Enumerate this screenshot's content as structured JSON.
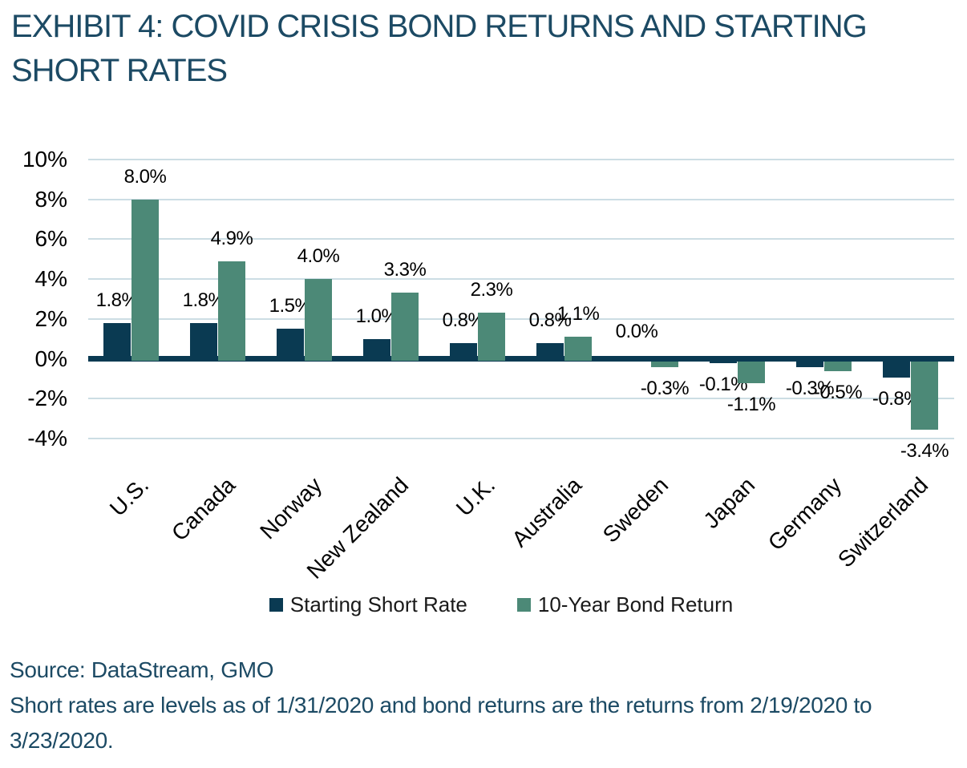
{
  "header": {
    "title": "EXHIBIT 4: COVID CRISIS BOND RETURNS AND STARTING SHORT RATES"
  },
  "colors": {
    "short_rate": "#0a3a52",
    "bond_return": "#4c8977",
    "gridline": "#ccdde4",
    "zero_axis": "#0a3a52",
    "heading_text": "#1c4a64",
    "label_text": "#000000"
  },
  "chart_data": {
    "type": "bar",
    "title": "EXHIBIT 4: COVID CRISIS BOND RETURNS AND STARTING SHORT RATES",
    "categories": [
      "U.S.",
      "Canada",
      "Norway",
      "New Zealand",
      "U.K.",
      "Australia",
      "Sweden",
      "Japan",
      "Germany",
      "Switzerland"
    ],
    "series": [
      {
        "name": "Starting Short Rate",
        "color_key": "short_rate",
        "values": [
          1.8,
          1.8,
          1.5,
          1.0,
          0.8,
          0.8,
          0.0,
          -0.1,
          -0.3,
          -0.8
        ],
        "labels": [
          "1.8%",
          "1.8%",
          "1.5%",
          "1.0%",
          "0.8%",
          "0.8%",
          "0.0%",
          "-0.1%",
          "-0.3%",
          "-0.8%"
        ]
      },
      {
        "name": "10-Year Bond Return",
        "color_key": "bond_return",
        "values": [
          8.0,
          4.9,
          4.0,
          3.3,
          2.3,
          1.1,
          -0.3,
          -1.1,
          -0.5,
          -3.4
        ],
        "labels": [
          "8.0%",
          "4.9%",
          "4.0%",
          "3.3%",
          "2.3%",
          "1.1%",
          "-0.3%",
          "-1.1%",
          "-0.5%",
          "-3.4%"
        ]
      }
    ],
    "y_ticks": [
      {
        "label": "10%",
        "value": 10
      },
      {
        "label": "8%",
        "value": 8
      },
      {
        "label": "6%",
        "value": 6
      },
      {
        "label": "4%",
        "value": 4
      },
      {
        "label": "2%",
        "value": 2
      },
      {
        "label": "0%",
        "value": 0
      },
      {
        "label": "-2%",
        "value": -2
      },
      {
        "label": "-4%",
        "value": -4
      }
    ],
    "ylim": [
      -4,
      10
    ],
    "grid": true,
    "legend_position": "bottom"
  },
  "footer": {
    "source": "Source: DataStream, GMO",
    "note": "Short rates are levels as of 1/31/2020 and bond returns are the returns from 2/19/2020 to 3/23/2020."
  }
}
